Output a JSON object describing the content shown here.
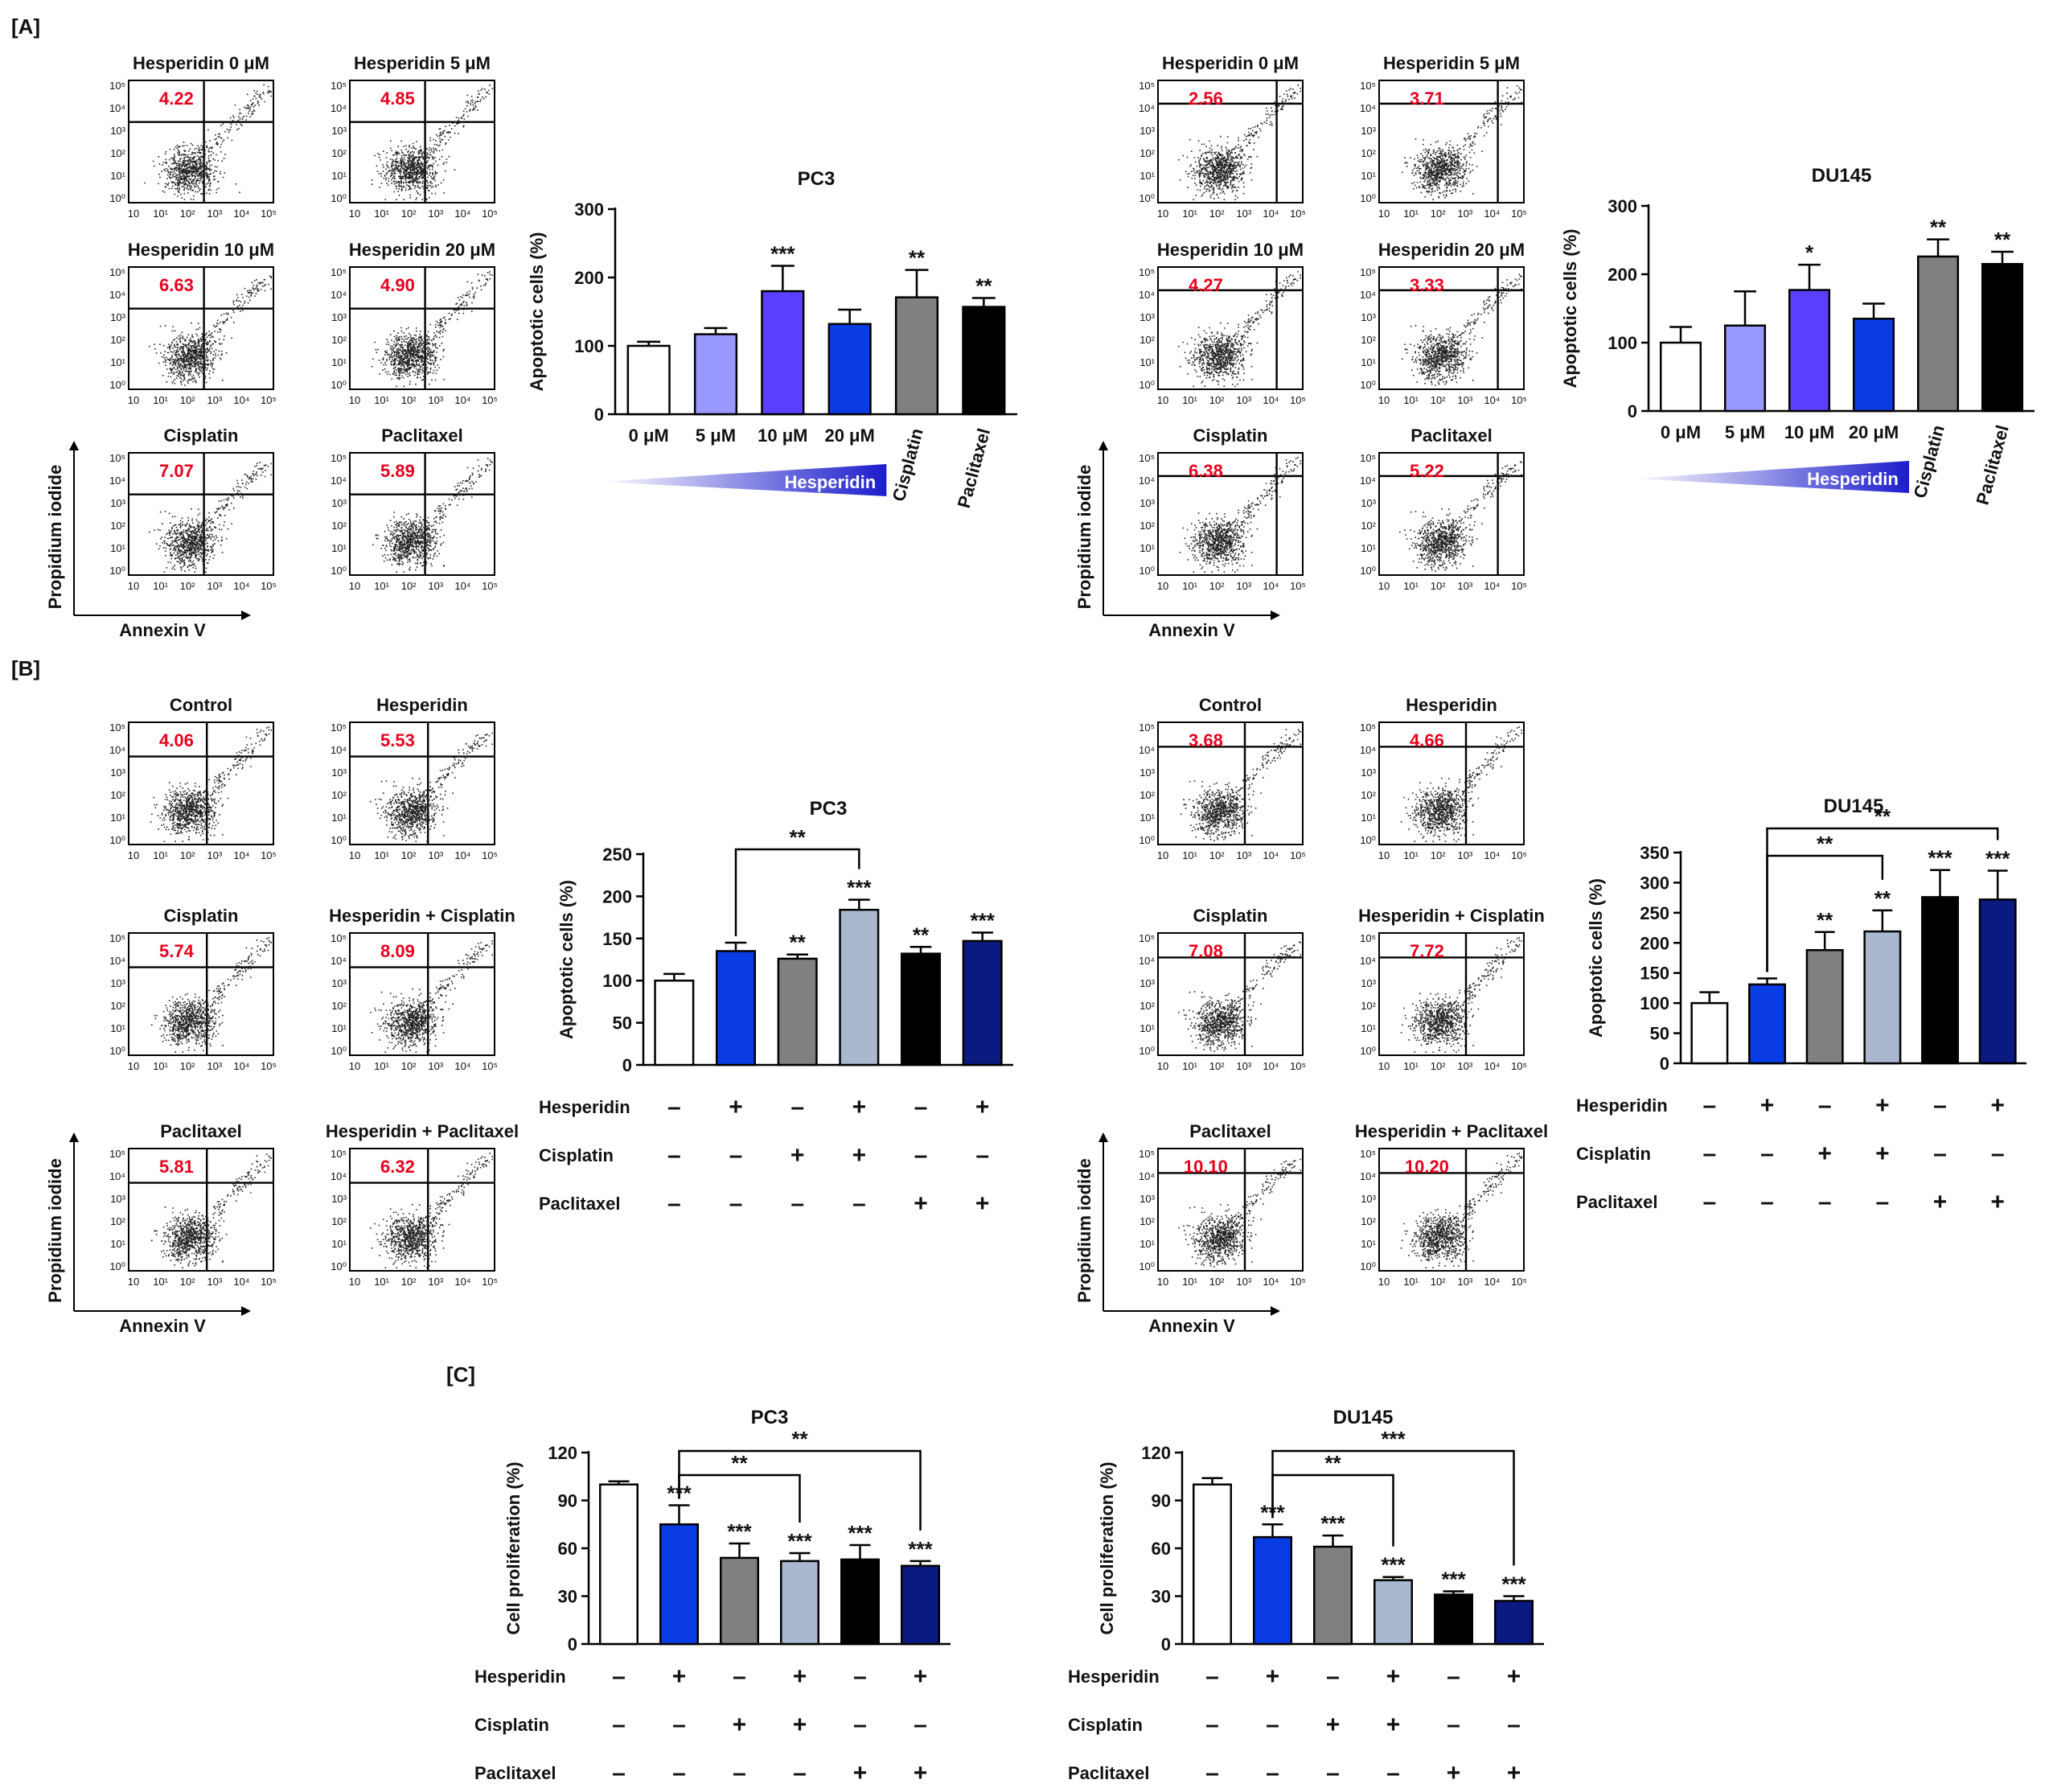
{
  "figure": {
    "panel_labels": [
      "[A]",
      "[B]",
      "[C]"
    ],
    "treatment_labels": [
      "Hesperidin",
      "Cisplatin",
      "Paclitaxel"
    ],
    "flow_axes": {
      "y_label": "Propidium iodide",
      "x_label": "Annexin V"
    },
    "flow_ticks": {
      "x": [
        "10",
        "10¹",
        "10²",
        "10³",
        "10⁴",
        "10⁵"
      ],
      "y": [
        "10⁰",
        "10¹",
        "10²",
        "10³",
        "10⁴",
        "10⁵"
      ]
    }
  },
  "flow_cytometry": {
    "A_PC3": [
      {
        "label": "Hesperidin 0 μM",
        "value": "4.22"
      },
      {
        "label": "Hesperidin 5 μM",
        "value": "4.85"
      },
      {
        "label": "Hesperidin 10 μM",
        "value": "6.63"
      },
      {
        "label": "Hesperidin 20 μM",
        "value": "4.90"
      },
      {
        "label": "Cisplatin",
        "value": "7.07"
      },
      {
        "label": "Paclitaxel",
        "value": "5.89"
      }
    ],
    "A_DU145": [
      {
        "label": "Hesperidin 0 μM",
        "value": "2.56"
      },
      {
        "label": "Hesperidin 5 μM",
        "value": "3.71"
      },
      {
        "label": "Hesperidin 10 μM",
        "value": "4.27"
      },
      {
        "label": "Hesperidin 20 μM",
        "value": "3.33"
      },
      {
        "label": "Cisplatin",
        "value": "6.38"
      },
      {
        "label": "Paclitaxel",
        "value": "5.22"
      }
    ],
    "B_PC3": [
      {
        "label": "Control",
        "value": "4.06"
      },
      {
        "label": "Hesperidin",
        "value": "5.53"
      },
      {
        "label": "Cisplatin",
        "value": "5.74"
      },
      {
        "label": "Hesperidin + Cisplatin",
        "value": "8.09"
      },
      {
        "label": "Paclitaxel",
        "value": "5.81"
      },
      {
        "label": "Hesperidin + Paclitaxel",
        "value": "6.32"
      }
    ],
    "B_DU145": [
      {
        "label": "Control",
        "value": "3.68"
      },
      {
        "label": "Hesperidin",
        "value": "4.66"
      },
      {
        "label": "Cisplatin",
        "value": "7.08"
      },
      {
        "label": "Hesperidin + Cisplatin",
        "value": "7.72"
      },
      {
        "label": "Paclitaxel",
        "value": "10.10"
      },
      {
        "label": "Hesperidin + Paclitaxel",
        "value": "10.20"
      }
    ]
  },
  "chart_data": [
    {
      "id": "A_PC3",
      "type": "bar",
      "title": "PC3",
      "ylabel": "Apoptotic cells (%)",
      "ylim": [
        0,
        300
      ],
      "yticks": [
        0,
        100,
        200,
        300
      ],
      "categories": [
        "0 μM",
        "5 μM",
        "10 μM",
        "20 μM",
        "Cisplatin",
        "Paclitaxel"
      ],
      "values": [
        100,
        117,
        180,
        132,
        171,
        157
      ],
      "errors": [
        6,
        9,
        37,
        21,
        40,
        13
      ],
      "sig": [
        "",
        "",
        "***",
        "",
        "**",
        "**"
      ],
      "colors": [
        "#ffffff",
        "#9999ff",
        "#5a40ff",
        "#0a3ce6",
        "#808080",
        "#000000"
      ],
      "gradient_label": "Hesperidin",
      "brackets": []
    },
    {
      "id": "A_DU145",
      "type": "bar",
      "title": "DU145",
      "ylabel": "Apoptotic cells (%)",
      "ylim": [
        0,
        300
      ],
      "yticks": [
        0,
        100,
        200,
        300
      ],
      "categories": [
        "0 μM",
        "5 μM",
        "10 μM",
        "20 μM",
        "Cisplatin",
        "Paclitaxel"
      ],
      "values": [
        100,
        125,
        177,
        135,
        226,
        215
      ],
      "errors": [
        23,
        50,
        37,
        22,
        25,
        18
      ],
      "sig": [
        "",
        "",
        "*",
        "",
        "**",
        "**"
      ],
      "colors": [
        "#ffffff",
        "#9999ff",
        "#5a40ff",
        "#0a3ce6",
        "#808080",
        "#000000"
      ],
      "gradient_label": "Hesperidin",
      "brackets": []
    },
    {
      "id": "B_PC3",
      "type": "bar",
      "title": "PC3",
      "ylabel": "Apoptotic cells (%)",
      "ylim": [
        0,
        250
      ],
      "yticks": [
        0,
        50,
        100,
        150,
        200,
        250
      ],
      "groups": [
        {
          "hesperidin": "–",
          "cisplatin": "–",
          "paclitaxel": "–"
        },
        {
          "hesperidin": "+",
          "cisplatin": "–",
          "paclitaxel": "–"
        },
        {
          "hesperidin": "–",
          "cisplatin": "+",
          "paclitaxel": "–"
        },
        {
          "hesperidin": "+",
          "cisplatin": "+",
          "paclitaxel": "–"
        },
        {
          "hesperidin": "–",
          "cisplatin": "–",
          "paclitaxel": "+"
        },
        {
          "hesperidin": "+",
          "cisplatin": "–",
          "paclitaxel": "+"
        }
      ],
      "values": [
        100,
        135,
        126,
        184,
        132,
        147
      ],
      "errors": [
        8,
        10,
        5,
        12,
        8,
        10
      ],
      "sig": [
        "",
        "",
        "**",
        "***",
        "**",
        "***"
      ],
      "colors": [
        "#ffffff",
        "#0a3ce6",
        "#808080",
        "#a9b8cf",
        "#000000",
        "#0a1a80"
      ],
      "brackets": [
        {
          "from": 1,
          "to": 3,
          "label": "**"
        }
      ]
    },
    {
      "id": "B_DU145",
      "type": "bar",
      "title": "DU145",
      "ylabel": "Apoptotic cells (%)",
      "ylim": [
        0,
        350
      ],
      "yticks": [
        0,
        50,
        100,
        150,
        200,
        250,
        300,
        350
      ],
      "groups": [
        {
          "hesperidin": "–",
          "cisplatin": "–",
          "paclitaxel": "–"
        },
        {
          "hesperidin": "+",
          "cisplatin": "–",
          "paclitaxel": "–"
        },
        {
          "hesperidin": "–",
          "cisplatin": "+",
          "paclitaxel": "–"
        },
        {
          "hesperidin": "+",
          "cisplatin": "+",
          "paclitaxel": "–"
        },
        {
          "hesperidin": "–",
          "cisplatin": "–",
          "paclitaxel": "+"
        },
        {
          "hesperidin": "+",
          "cisplatin": "–",
          "paclitaxel": "+"
        }
      ],
      "values": [
        100,
        131,
        188,
        219,
        276,
        272
      ],
      "errors": [
        18,
        10,
        30,
        35,
        45,
        48
      ],
      "sig": [
        "",
        "",
        "**",
        "**",
        "***",
        "***"
      ],
      "colors": [
        "#ffffff",
        "#0a3ce6",
        "#808080",
        "#a9b8cf",
        "#000000",
        "#0a1a80"
      ],
      "brackets": [
        {
          "from": 1,
          "to": 3,
          "label": "**"
        },
        {
          "from": 1,
          "to": 5,
          "label": "**"
        }
      ]
    },
    {
      "id": "C_PC3",
      "type": "bar",
      "title": "PC3",
      "ylabel": "Cell proliferation (%)",
      "ylim": [
        0,
        120
      ],
      "yticks": [
        0,
        30,
        60,
        90,
        120
      ],
      "groups": [
        {
          "hesperidin": "–",
          "cisplatin": "–",
          "paclitaxel": "–"
        },
        {
          "hesperidin": "+",
          "cisplatin": "–",
          "paclitaxel": "–"
        },
        {
          "hesperidin": "–",
          "cisplatin": "+",
          "paclitaxel": "–"
        },
        {
          "hesperidin": "+",
          "cisplatin": "+",
          "paclitaxel": "–"
        },
        {
          "hesperidin": "–",
          "cisplatin": "–",
          "paclitaxel": "+"
        },
        {
          "hesperidin": "+",
          "cisplatin": "–",
          "paclitaxel": "+"
        }
      ],
      "values": [
        100,
        75,
        54,
        52,
        53,
        49
      ],
      "errors": [
        2,
        12,
        9,
        5,
        9,
        3
      ],
      "sig": [
        "",
        "***",
        "***",
        "***",
        "***",
        "***"
      ],
      "colors": [
        "#ffffff",
        "#0a3ce6",
        "#808080",
        "#a9b8cf",
        "#000000",
        "#0a1a80"
      ],
      "brackets": [
        {
          "from": 1,
          "to": 3,
          "label": "**"
        },
        {
          "from": 1,
          "to": 5,
          "label": "**"
        }
      ]
    },
    {
      "id": "C_DU145",
      "type": "bar",
      "title": "DU145",
      "ylabel": "Cell proliferation (%)",
      "ylim": [
        0,
        120
      ],
      "yticks": [
        0,
        30,
        60,
        90,
        120
      ],
      "groups": [
        {
          "hesperidin": "–",
          "cisplatin": "–",
          "paclitaxel": "–"
        },
        {
          "hesperidin": "+",
          "cisplatin": "–",
          "paclitaxel": "–"
        },
        {
          "hesperidin": "–",
          "cisplatin": "+",
          "paclitaxel": "–"
        },
        {
          "hesperidin": "+",
          "cisplatin": "+",
          "paclitaxel": "–"
        },
        {
          "hesperidin": "–",
          "cisplatin": "–",
          "paclitaxel": "+"
        },
        {
          "hesperidin": "+",
          "cisplatin": "–",
          "paclitaxel": "+"
        }
      ],
      "values": [
        100,
        67,
        61,
        40,
        31,
        27
      ],
      "errors": [
        4,
        8,
        7,
        2,
        2,
        3
      ],
      "sig": [
        "",
        "***",
        "***",
        "***",
        "***",
        "***"
      ],
      "colors": [
        "#ffffff",
        "#0a3ce6",
        "#808080",
        "#a9b8cf",
        "#000000",
        "#0a1a80"
      ],
      "brackets": [
        {
          "from": 1,
          "to": 3,
          "label": "**"
        },
        {
          "from": 1,
          "to": 5,
          "label": "***"
        }
      ]
    }
  ]
}
